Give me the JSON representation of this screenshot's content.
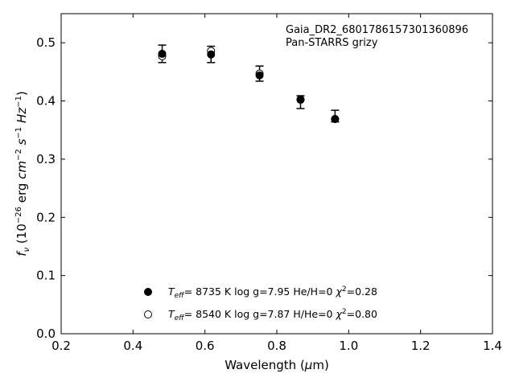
{
  "chart_data": {
    "type": "scatter",
    "annotation": [
      "Gaia_DR2_6801786157301360896",
      "Pan-STARRS grizy"
    ],
    "xlabel": {
      "prefix": "Wavelength (",
      "greek": "μ",
      "suffix": "m)"
    },
    "ylabel_unit": "erg",
    "xlim": [
      0.2,
      1.4
    ],
    "ylim": [
      0.0,
      0.55
    ],
    "xticks": [
      0.2,
      0.4,
      0.6,
      0.8,
      1.0,
      1.2,
      1.4
    ],
    "xtick_labels": [
      "0.2",
      "0.4",
      "0.6",
      "0.8",
      "1.0",
      "1.2",
      "1.4"
    ],
    "yticks": [
      0.0,
      0.1,
      0.2,
      0.3,
      0.4,
      0.5
    ],
    "ytick_labels": [
      "0.0",
      "0.1",
      "0.2",
      "0.3",
      "0.4",
      "0.5"
    ],
    "grid": false,
    "legend_position": "bottom-center",
    "observed": {
      "x": [
        0.481,
        0.617,
        0.752,
        0.866,
        0.962
      ],
      "y": [
        0.481,
        0.48,
        0.447,
        0.398,
        0.374
      ],
      "yerr": [
        0.015,
        0.014,
        0.013,
        0.011,
        0.01
      ]
    },
    "series": [
      {
        "marker": "filled",
        "teff": "8735 K",
        "logg": "log g=7.95",
        "comp": "He/H=0",
        "chi2": "=0.28",
        "x": [
          0.481,
          0.617,
          0.752,
          0.866,
          0.962
        ],
        "y": [
          0.481,
          0.48,
          0.444,
          0.402,
          0.369
        ]
      },
      {
        "marker": "open",
        "teff": "8540 K",
        "logg": "log g=7.87",
        "comp": "H/He=0",
        "chi2": "=0.80",
        "x": [
          0.481,
          0.617,
          0.752,
          0.866,
          0.962
        ],
        "y": [
          0.477,
          0.486,
          0.447,
          0.403,
          0.369
        ]
      }
    ]
  }
}
